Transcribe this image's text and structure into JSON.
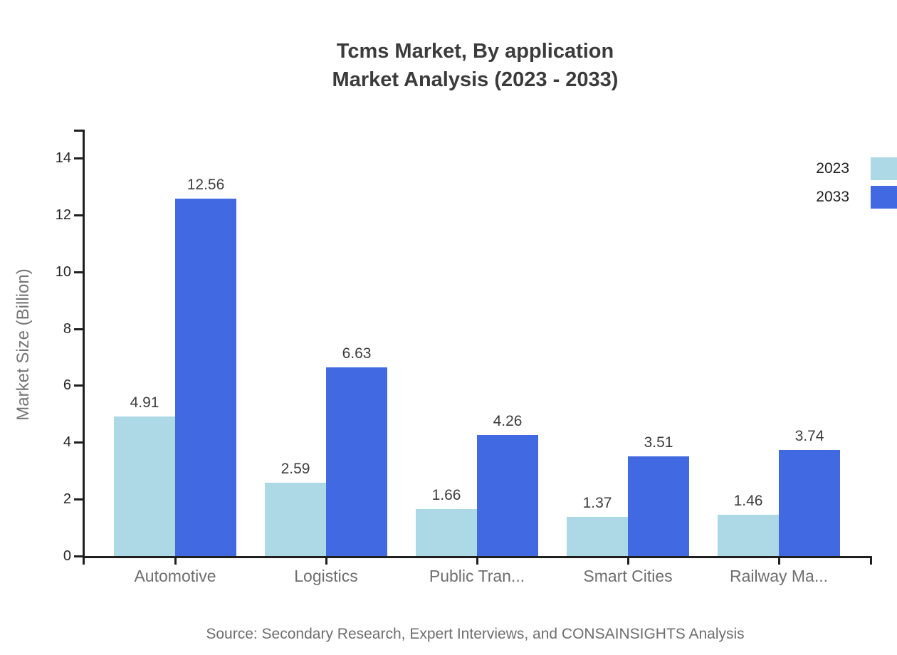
{
  "title": {
    "line1": "Tcms Market, By application",
    "line2": "Market Analysis (2023 - 2033)"
  },
  "source": "Source: Secondary Research, Expert Interviews, and CONSAINSIGHTS Analysis",
  "chart_data": {
    "type": "bar",
    "title": "Tcms Market, By application Market Analysis (2023 - 2033)",
    "categories": [
      "Automotive",
      "Logistics",
      "Public Tran...",
      "Smart Cities",
      "Railway Ma..."
    ],
    "series": [
      {
        "name": "2023",
        "color": "#ADD8E6",
        "values": [
          4.91,
          2.59,
          1.66,
          1.37,
          1.46
        ]
      },
      {
        "name": "2033",
        "color": "#4169E1",
        "values": [
          12.56,
          6.63,
          4.26,
          3.51,
          3.74
        ]
      }
    ],
    "xlabel": "",
    "ylabel": "Market Size (Billion)",
    "yticks": [
      0,
      2,
      4,
      6,
      8,
      10,
      12,
      14
    ],
    "ylim": [
      0,
      15
    ],
    "grid": false,
    "legend_position": "top-right",
    "value_labels": true,
    "axis_color": "#1f1f1f"
  }
}
